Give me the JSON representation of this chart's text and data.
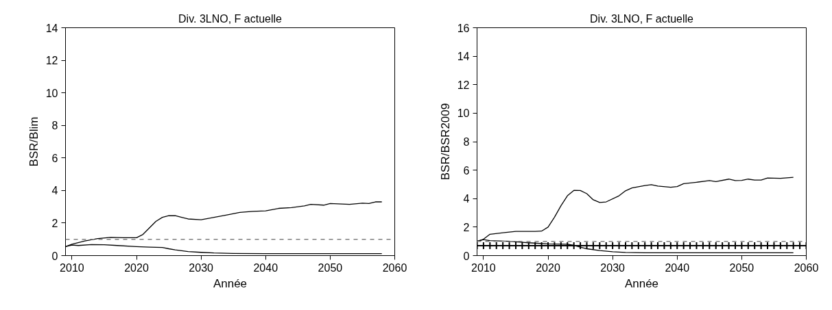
{
  "chart_data": [
    {
      "type": "line",
      "title": "Div. 3LNO, F actuelle",
      "xlabel": "Année",
      "ylabel": "BSR/Blim",
      "xlim": [
        2009,
        2060
      ],
      "xticks": [
        2010,
        2020,
        2030,
        2040,
        2050,
        2060
      ],
      "ylim": [
        0,
        14
      ],
      "yticks": [
        0,
        2,
        4,
        6,
        8,
        10,
        12,
        14
      ],
      "grid": false,
      "marker": "none",
      "line_style": "solid",
      "ref_lines": [
        {
          "axis": "y",
          "value": 1,
          "color": "#808080",
          "line_style": "dashed"
        }
      ],
      "series": [
        {
          "color": "#000000",
          "x": [
            2009,
            2010,
            2012,
            2014,
            2016,
            2018,
            2020,
            2021,
            2022,
            2023,
            2024,
            2025,
            2026,
            2027,
            2028,
            2030,
            2032,
            2034,
            2036,
            2038,
            2040,
            2042,
            2044,
            2046,
            2047,
            2049,
            2050,
            2053,
            2055,
            2056,
            2057,
            2058
          ],
          "values": [
            0.55,
            0.7,
            0.9,
            1.05,
            1.12,
            1.1,
            1.1,
            1.3,
            1.7,
            2.1,
            2.35,
            2.45,
            2.45,
            2.35,
            2.25,
            2.2,
            2.35,
            2.5,
            2.65,
            2.72,
            2.75,
            2.9,
            2.95,
            3.05,
            3.15,
            3.1,
            3.2,
            3.15,
            3.22,
            3.2,
            3.3,
            3.3
          ]
        },
        {
          "color": "#000000",
          "x": [
            2009,
            2010,
            2011,
            2013,
            2015,
            2017,
            2020,
            2022,
            2024,
            2025,
            2026,
            2028,
            2030,
            2032,
            2035,
            2040,
            2058
          ],
          "values": [
            0.55,
            0.65,
            0.62,
            0.68,
            0.67,
            0.62,
            0.55,
            0.52,
            0.5,
            0.42,
            0.35,
            0.25,
            0.2,
            0.16,
            0.13,
            0.12,
            0.12
          ]
        }
      ]
    },
    {
      "type": "line",
      "title": "Div. 3LNO, F actuelle",
      "xlabel": "Année",
      "ylabel": "BSR/BSR2009",
      "xlim": [
        2009,
        2060
      ],
      "xticks": [
        2010,
        2020,
        2030,
        2040,
        2050,
        2060
      ],
      "ylim": [
        0,
        16
      ],
      "yticks": [
        0,
        2,
        4,
        6,
        8,
        10,
        12,
        14,
        16
      ],
      "grid": false,
      "line_style": "solid",
      "ref_lines": [
        {
          "axis": "y",
          "value": 1,
          "color": "#808080",
          "line_style": "dashed"
        }
      ],
      "series": [
        {
          "color": "#000000",
          "x": [
            2009,
            2010,
            2011,
            2013,
            2015,
            2018,
            2019,
            2020,
            2021,
            2022,
            2023,
            2024,
            2025,
            2026,
            2027,
            2028,
            2029,
            2031,
            2032,
            2033,
            2035,
            2036,
            2037,
            2039,
            2040,
            2041,
            2043,
            2045,
            2046,
            2048,
            2049,
            2050,
            2051,
            2052,
            2053,
            2054,
            2056,
            2058
          ],
          "values": [
            1.0,
            1.15,
            1.5,
            1.6,
            1.7,
            1.7,
            1.72,
            2.0,
            2.7,
            3.5,
            4.2,
            4.58,
            4.57,
            4.35,
            3.92,
            3.73,
            3.77,
            4.2,
            4.55,
            4.75,
            4.92,
            4.98,
            4.88,
            4.8,
            4.85,
            5.05,
            5.15,
            5.27,
            5.2,
            5.37,
            5.27,
            5.28,
            5.37,
            5.3,
            5.3,
            5.45,
            5.42,
            5.5
          ]
        },
        {
          "color": "#000000",
          "x": [
            2009,
            2010,
            2011,
            2014,
            2017,
            2020,
            2023,
            2024,
            2025,
            2026,
            2028,
            2030,
            2032,
            2035,
            2040,
            2058
          ],
          "values": [
            1.0,
            1.12,
            1.05,
            1.0,
            0.9,
            0.82,
            0.8,
            0.72,
            0.6,
            0.48,
            0.35,
            0.27,
            0.22,
            0.2,
            0.2,
            0.2
          ]
        },
        {
          "type": "scatter",
          "color": "#000000",
          "marker": "cross",
          "x": [
            2009,
            2010,
            2011,
            2012,
            2013,
            2014,
            2015,
            2016,
            2017,
            2018,
            2019,
            2020,
            2021,
            2022,
            2023,
            2024,
            2025,
            2026,
            2027,
            2028,
            2029,
            2030,
            2031,
            2032,
            2033,
            2034,
            2035,
            2036,
            2037,
            2038,
            2039,
            2040,
            2041,
            2042,
            2043,
            2044,
            2045,
            2046,
            2047,
            2048,
            2049,
            2050,
            2051,
            2052,
            2053,
            2054,
            2055,
            2056,
            2057,
            2058,
            2059,
            2060
          ],
          "values": [
            0.7,
            0.7,
            0.7,
            0.7,
            0.7,
            0.7,
            0.7,
            0.7,
            0.7,
            0.7,
            0.7,
            0.7,
            0.7,
            0.7,
            0.7,
            0.7,
            0.7,
            0.7,
            0.7,
            0.7,
            0.7,
            0.7,
            0.7,
            0.7,
            0.7,
            0.7,
            0.7,
            0.7,
            0.7,
            0.7,
            0.7,
            0.7,
            0.7,
            0.7,
            0.7,
            0.7,
            0.7,
            0.7,
            0.7,
            0.7,
            0.7,
            0.7,
            0.7,
            0.7,
            0.7,
            0.7,
            0.7,
            0.7,
            0.7,
            0.7,
            0.7,
            0.7
          ]
        }
      ]
    }
  ]
}
